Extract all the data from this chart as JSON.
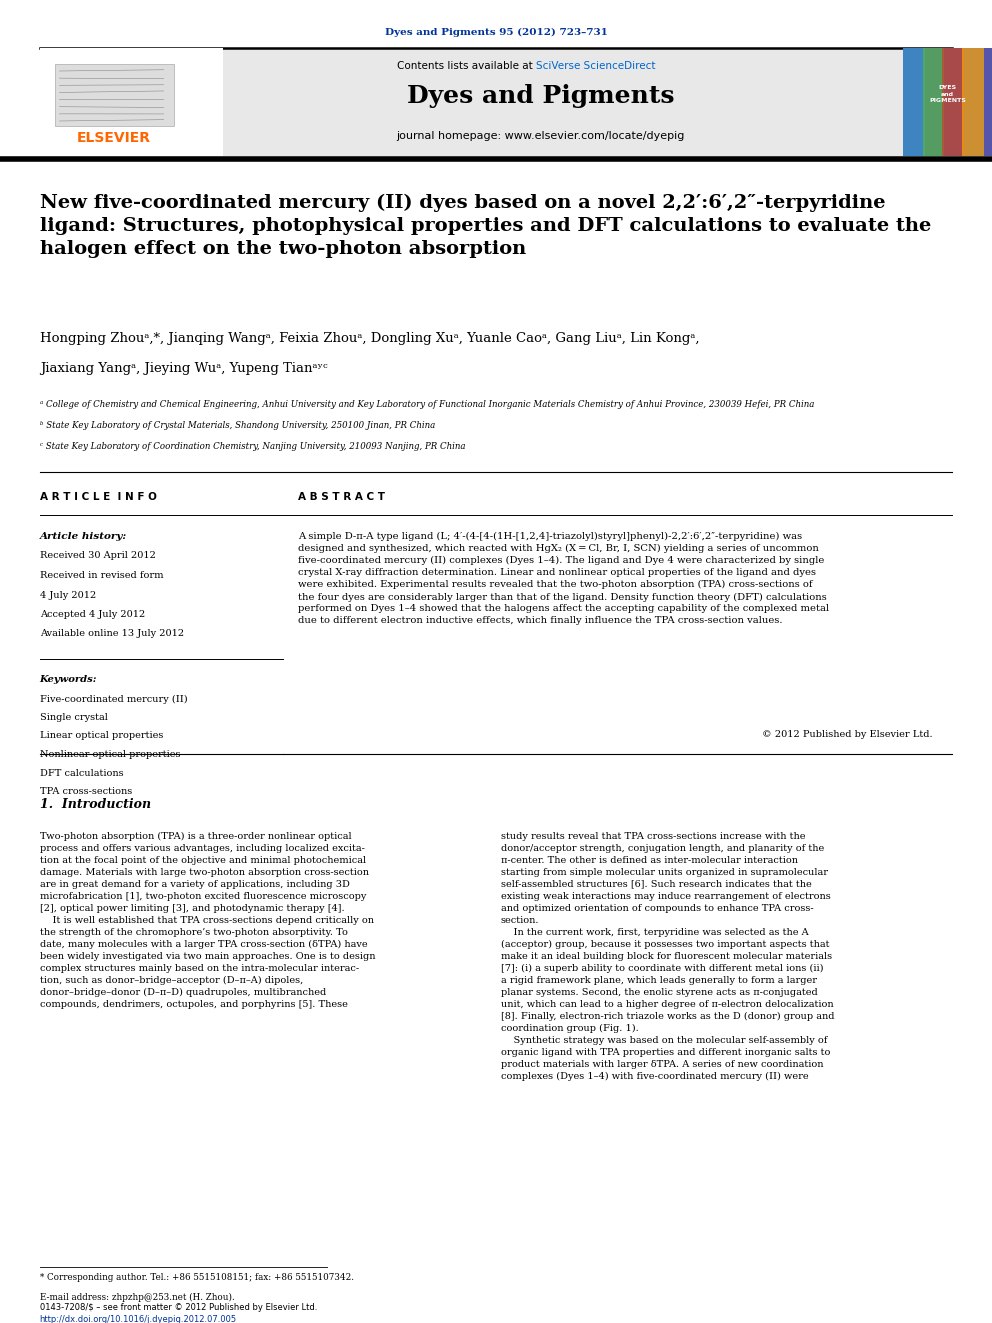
{
  "page_width": 9.92,
  "page_height": 13.23,
  "bg_color": "#ffffff",
  "journal_ref": "Dyes and Pigments 95 (2012) 723–731",
  "journal_ref_color": "#003399",
  "header_bg": "#e8e8e8",
  "header_title": "Dyes and Pigments",
  "header_subtitle": "journal homepage: www.elsevier.com/locate/dyepig",
  "sciverse_color": "#0066cc",
  "elsevier_color": "#ff6600",
  "article_title": "New five-coordinated mercury (II) dyes based on a novel 2,2′:6′,2″-terpyridine\nligand: Structures, photophysical properties and DFT calculations to evaluate the\nhalogen effect on the two-photon absorption",
  "authors_line1": "Hongping Zhouᵃ,*, Jianqing Wangᵃ, Feixia Zhouᵃ, Dongling Xuᵃ, Yuanle Caoᵃ, Gang Liuᵃ, Lin Kongᵃ,",
  "authors_line2": "Jiaxiang Yangᵃ, Jieying Wuᵃ, Yupeng Tianᵃʸᶜ",
  "affil_a": "ᵃ College of Chemistry and Chemical Engineering, Anhui University and Key Laboratory of Functional Inorganic Materials Chemistry of Anhui Province, 230039 Hefei, PR China",
  "affil_b": "ᵇ State Key Laboratory of Crystal Materials, Shandong University, 250100 Jinan, PR China",
  "affil_c": "ᶜ State Key Laboratory of Coordination Chemistry, Nanjing University, 210093 Nanjing, PR China",
  "article_info_title": "A R T I C L E  I N F O",
  "article_history_label": "Article history:",
  "received": "Received 30 April 2012",
  "revised": "Received in revised form",
  "revised2": "4 July 2012",
  "accepted": "Accepted 4 July 2012",
  "available": "Available online 13 July 2012",
  "keywords_label": "Keywords:",
  "keywords": [
    "Five-coordinated mercury (II)",
    "Single crystal",
    "Linear optical properties",
    "Nonlinear optical properties",
    "DFT calculations",
    "TPA cross-sections"
  ],
  "abstract_title": "A B S T R A C T",
  "abstract_text": "A simple D-π-A type ligand (L; 4′-(4-[4-(1H-[1,2,4]-triazolyl)styryl]phenyl)-2,2′:6′,2″-terpyridine) was\ndesigned and synthesized, which reacted with HgX₂ (X = Cl, Br, I, SCN) yielding a series of uncommon\nfive-coordinated mercury (II) complexes (Dyes 1–4). The ligand and Dye 4 were characterized by single\ncrystal X-ray diffraction determination. Linear and nonlinear optical properties of the ligand and dyes\nwere exhibited. Experimental results revealed that the two-photon absorption (TPA) cross-sections of\nthe four dyes are considerably larger than that of the ligand. Density function theory (DFT) calculations\nperformed on Dyes 1–4 showed that the halogens affect the accepting capability of the complexed metal\ndue to different electron inductive effects, which finally influence the TPA cross-section values.",
  "copyright": "© 2012 Published by Elsevier Ltd.",
  "section1_title": "1.  Introduction",
  "intro_col1": "Two-photon absorption (TPA) is a three-order nonlinear optical\nprocess and offers various advantages, including localized excita-\ntion at the focal point of the objective and minimal photochemical\ndamage. Materials with large two-photon absorption cross-section\nare in great demand for a variety of applications, including 3D\nmicrofabrication [1], two-photon excited fluorescence microscopy\n[2], optical power limiting [3], and photodynamic therapy [4].\n    It is well established that TPA cross-sections depend critically on\nthe strength of the chromophore’s two-photon absorptivity. To\ndate, many molecules with a larger TPA cross-section (δTPA) have\nbeen widely investigated via two main approaches. One is to design\ncomplex structures mainly based on the intra-molecular interac-\ntion, such as donor–bridge–acceptor (D–π–A) dipoles,\ndonor–bridge–donor (D–π–D) quadrupoles, multibranched\ncompounds, dendrimers, octupoles, and porphyrins [5]. These",
  "intro_col2": "study results reveal that TPA cross-sections increase with the\ndonor/acceptor strength, conjugation length, and planarity of the\nπ-center. The other is defined as inter-molecular interaction\nstarting from simple molecular units organized in supramolecular\nself-assembled structures [6]. Such research indicates that the\nexisting weak interactions may induce rearrangement of electrons\nand optimized orientation of compounds to enhance TPA cross-\nsection.\n    In the current work, first, terpyridine was selected as the A\n(acceptor) group, because it possesses two important aspects that\nmake it an ideal building block for fluorescent molecular materials\n[7]: (i) a superb ability to coordinate with different metal ions (ii)\na rigid framework plane, which leads generally to form a larger\nplanar systems. Second, the enolic styrene acts as π-conjugated\nunit, which can lead to a higher degree of π-electron delocalization\n[8]. Finally, electron-rich triazole works as the D (donor) group and\ncoordination group (Fig. 1).",
  "intro_col2_extra": "    Synthetic strategy was based on the molecular self-assembly of\norganic ligand with TPA properties and different inorganic salts to\nproduct materials with larger δTPA. A series of new coordination\ncomplexes (Dyes 1–4) with five-coordinated mercury (II) were",
  "footnote1": "* Corresponding author. Tel.: +86 5515108151; fax: +86 5515107342.",
  "footnote2": "E-mail address: zhpzhp@253.net (H. Zhou).",
  "bottom_issn": "0143-7208/$ – see front matter © 2012 Published by Elsevier Ltd.",
  "bottom_doi": "http://dx.doi.org/10.1016/j.dyepig.2012.07.005"
}
